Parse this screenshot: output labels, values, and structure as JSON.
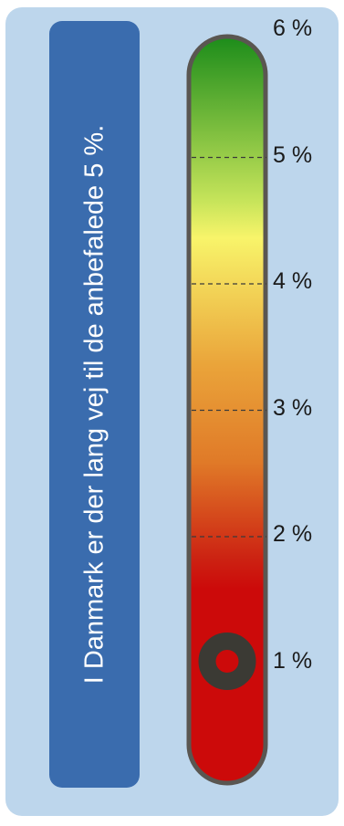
{
  "gauge": {
    "title": "I Danmark er der lang vej til de anbefalede 5 %.",
    "value": 1,
    "min": 0,
    "max": 6,
    "target": 5,
    "tick_labels": [
      "1 %",
      "2 %",
      "3 %",
      "4 %",
      "5 %",
      "6 %"
    ],
    "colors": {
      "panel": "#bdd6ec",
      "title_box": "#3a6cae",
      "red": "#cc0a0a",
      "orange": "#e07a28",
      "yellow": "#f8f46a",
      "green": "#1c8c1a",
      "marker": "#3b3a34",
      "outline": "#5a5651"
    }
  }
}
